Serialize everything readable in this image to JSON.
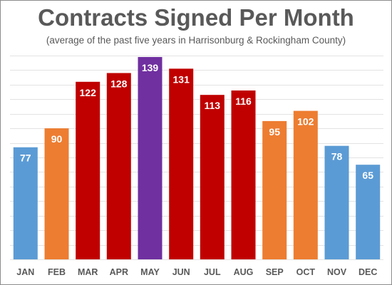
{
  "chart_data": {
    "type": "bar",
    "title": "Contracts Signed Per Month",
    "subtitle": "(average of the past five years in Harrisonburg & Rockingham County)",
    "categories": [
      "JAN",
      "FEB",
      "MAR",
      "APR",
      "MAY",
      "JUN",
      "JUL",
      "AUG",
      "SEP",
      "OCT",
      "NOV",
      "DEC"
    ],
    "values": [
      77,
      90,
      122,
      128,
      139,
      131,
      113,
      116,
      95,
      102,
      78,
      65
    ],
    "colors": [
      "#5b9bd5",
      "#ed7d31",
      "#c00000",
      "#c00000",
      "#7030a0",
      "#c00000",
      "#c00000",
      "#c00000",
      "#ed7d31",
      "#ed7d31",
      "#5b9bd5",
      "#5b9bd5"
    ],
    "xlabel": "",
    "ylabel": "",
    "ylim": [
      0,
      140
    ],
    "grid": true,
    "data_labels": true,
    "legend": "none"
  }
}
